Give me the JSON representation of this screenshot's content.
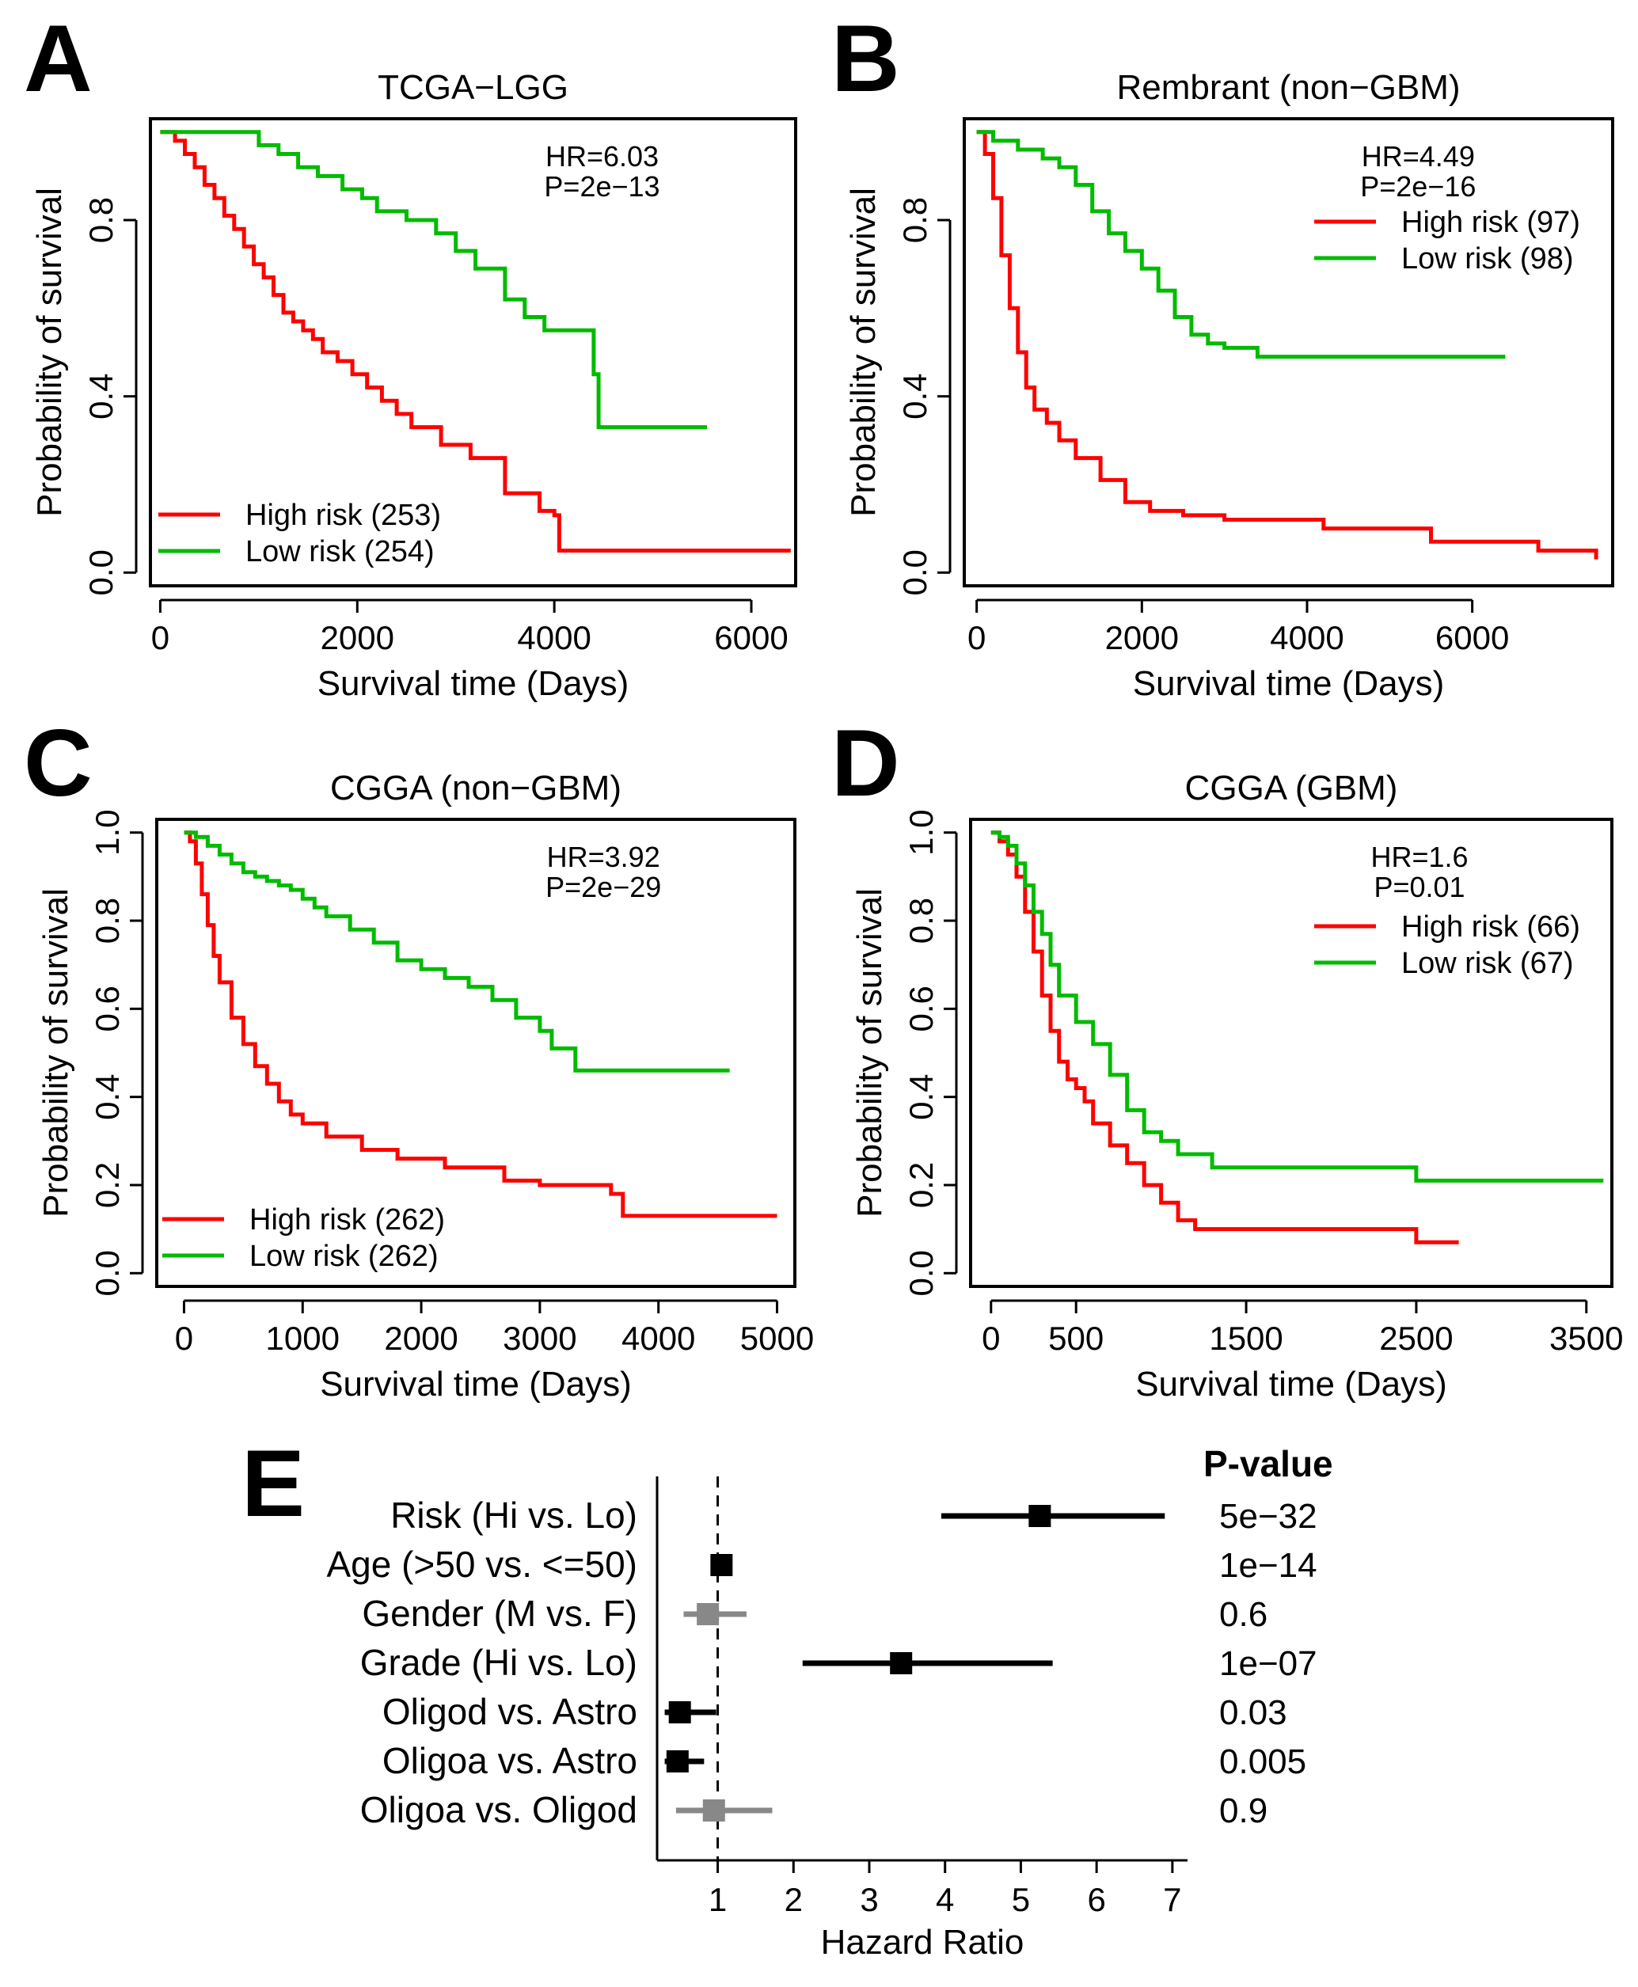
{
  "chart_data": [
    {
      "type": "line",
      "panel": "A",
      "title": "TCGA−LGG",
      "xlabel": "Survival time (Days)",
      "ylabel": "Probability of survival",
      "xlim": [
        -100,
        6450
      ],
      "ylim": [
        -0.03,
        1.03
      ],
      "xticks": [
        0,
        2000,
        4000,
        6000
      ],
      "xtick_labels": [
        "0",
        "2000",
        "4000",
        "6000"
      ],
      "yticks": [
        0,
        0.4,
        0.8
      ],
      "ytick_labels": [
        "0.0",
        "0.4",
        "0.8"
      ],
      "hr_text": "HR=6.03",
      "p_text": "P=2e−13",
      "legend_position": "bottom-left",
      "series": [
        {
          "name": "High risk (253)",
          "color": "#ff0000",
          "x": [
            0,
            150,
            250,
            350,
            450,
            550,
            650,
            750,
            850,
            950,
            1050,
            1150,
            1250,
            1350,
            1450,
            1550,
            1650,
            1800,
            1950,
            2100,
            2250,
            2400,
            2550,
            2850,
            3150,
            3500,
            3850,
            4000,
            4050,
            4400,
            5000,
            6400
          ],
          "y": [
            1.0,
            0.98,
            0.95,
            0.92,
            0.88,
            0.85,
            0.81,
            0.78,
            0.74,
            0.7,
            0.67,
            0.63,
            0.59,
            0.57,
            0.55,
            0.53,
            0.5,
            0.48,
            0.45,
            0.42,
            0.39,
            0.36,
            0.33,
            0.29,
            0.26,
            0.18,
            0.14,
            0.13,
            0.05,
            0.05,
            0.05,
            0.05
          ]
        },
        {
          "name": "Low risk (254)",
          "color": "#00bb00",
          "x": [
            0,
            500,
            800,
            1000,
            1200,
            1400,
            1600,
            1850,
            2050,
            2200,
            2500,
            2800,
            3000,
            3200,
            3500,
            3700,
            3900,
            4050,
            4400,
            4450,
            5000,
            5550
          ],
          "y": [
            1.0,
            1.0,
            1.0,
            0.97,
            0.95,
            0.92,
            0.9,
            0.87,
            0.85,
            0.82,
            0.8,
            0.77,
            0.73,
            0.69,
            0.62,
            0.58,
            0.55,
            0.55,
            0.45,
            0.33,
            0.33,
            0.33
          ]
        }
      ]
    },
    {
      "type": "line",
      "panel": "B",
      "title": "Rembrant (non−GBM)",
      "xlabel": "Survival time (Days)",
      "ylabel": "Probability of survival",
      "xlim": [
        -150,
        7700
      ],
      "ylim": [
        -0.03,
        1.03
      ],
      "xticks": [
        0,
        2000,
        4000,
        6000
      ],
      "xtick_labels": [
        "0",
        "2000",
        "4000",
        "6000"
      ],
      "yticks": [
        0,
        0.4,
        0.8
      ],
      "ytick_labels": [
        "0.0",
        "0.4",
        "0.8"
      ],
      "hr_text": "HR=4.49",
      "p_text": "P=2e−16",
      "legend_position": "top-right",
      "series": [
        {
          "name": "High risk (97)",
          "color": "#ff0000",
          "x": [
            0,
            100,
            200,
            300,
            400,
            500,
            600,
            700,
            850,
            1000,
            1200,
            1500,
            1800,
            2100,
            2500,
            3000,
            4200,
            5500,
            6800,
            7500
          ],
          "y": [
            1.0,
            0.95,
            0.85,
            0.72,
            0.6,
            0.5,
            0.42,
            0.37,
            0.34,
            0.3,
            0.26,
            0.21,
            0.16,
            0.14,
            0.13,
            0.12,
            0.1,
            0.07,
            0.05,
            0.03
          ]
        },
        {
          "name": "Low risk (98)",
          "color": "#00bb00",
          "x": [
            0,
            200,
            500,
            800,
            1000,
            1200,
            1400,
            1600,
            1800,
            2000,
            2200,
            2400,
            2600,
            2800,
            3000,
            3400,
            4200,
            5000,
            6400
          ],
          "y": [
            1.0,
            0.98,
            0.96,
            0.94,
            0.92,
            0.88,
            0.82,
            0.77,
            0.73,
            0.69,
            0.64,
            0.58,
            0.54,
            0.52,
            0.51,
            0.49,
            0.49,
            0.49,
            0.49
          ]
        }
      ]
    },
    {
      "type": "line",
      "panel": "C",
      "title": "CGGA (non−GBM)",
      "xlabel": "Survival time (Days)",
      "ylabel": "Probability of survival",
      "xlim": [
        -230,
        5150
      ],
      "ylim": [
        -0.03,
        1.03
      ],
      "xticks": [
        0,
        1000,
        2000,
        3000,
        4000,
        5000
      ],
      "xtick_labels": [
        "0",
        "1000",
        "2000",
        "3000",
        "4000",
        "5000"
      ],
      "yticks": [
        0,
        0.2,
        0.4,
        0.6,
        0.8,
        1.0
      ],
      "ytick_labels": [
        "0.0",
        "0.2",
        "0.4",
        "0.6",
        "0.8",
        "1.0"
      ],
      "hr_text": "HR=3.92",
      "p_text": "P=2e−29",
      "legend_position": "bottom-left",
      "series": [
        {
          "name": "High risk (262)",
          "color": "#ff0000",
          "x": [
            0,
            50,
            100,
            150,
            200,
            250,
            300,
            400,
            500,
            600,
            700,
            800,
            900,
            1000,
            1200,
            1500,
            1800,
            2200,
            2700,
            3000,
            3600,
            3700,
            4500,
            5000
          ],
          "y": [
            1.0,
            0.98,
            0.93,
            0.86,
            0.79,
            0.72,
            0.66,
            0.58,
            0.52,
            0.47,
            0.43,
            0.39,
            0.36,
            0.34,
            0.31,
            0.28,
            0.26,
            0.24,
            0.21,
            0.2,
            0.18,
            0.13,
            0.13,
            0.13
          ]
        },
        {
          "name": "Low risk (262)",
          "color": "#00bb00",
          "x": [
            0,
            100,
            200,
            300,
            400,
            500,
            600,
            700,
            800,
            900,
            1000,
            1100,
            1200,
            1400,
            1600,
            1800,
            2000,
            2200,
            2400,
            2600,
            2800,
            3000,
            3100,
            3300,
            3500,
            4000,
            4600
          ],
          "y": [
            1.0,
            0.99,
            0.97,
            0.95,
            0.93,
            0.91,
            0.9,
            0.89,
            0.88,
            0.87,
            0.85,
            0.83,
            0.81,
            0.78,
            0.75,
            0.71,
            0.69,
            0.67,
            0.65,
            0.62,
            0.58,
            0.55,
            0.51,
            0.46,
            0.46,
            0.46,
            0.46
          ]
        }
      ]
    },
    {
      "type": "line",
      "panel": "D",
      "title": "CGGA (GBM)",
      "xlabel": "Survival time (Days)",
      "ylabel": "Probability of survival",
      "xlim": [
        -120,
        3650
      ],
      "ylim": [
        -0.03,
        1.03
      ],
      "xticks": [
        0,
        500,
        1500,
        2500,
        3500
      ],
      "xtick_labels": [
        "0",
        "500",
        "1500",
        "2500",
        "3500"
      ],
      "yticks": [
        0,
        0.2,
        0.4,
        0.6,
        0.8,
        1.0
      ],
      "ytick_labels": [
        "0.0",
        "0.2",
        "0.4",
        "0.6",
        "0.8",
        "1.0"
      ],
      "hr_text": "HR=1.6",
      "p_text": "P=0.01",
      "legend_position": "top-right",
      "series": [
        {
          "name": "High risk (66)",
          "color": "#ff0000",
          "x": [
            0,
            50,
            100,
            150,
            200,
            250,
            300,
            350,
            400,
            450,
            500,
            550,
            600,
            700,
            800,
            900,
            1000,
            1100,
            1200,
            1500,
            2000,
            2500,
            2750
          ],
          "y": [
            1.0,
            0.98,
            0.95,
            0.9,
            0.82,
            0.73,
            0.63,
            0.55,
            0.48,
            0.44,
            0.42,
            0.39,
            0.34,
            0.29,
            0.25,
            0.2,
            0.16,
            0.12,
            0.1,
            0.1,
            0.1,
            0.07,
            0.07
          ]
        },
        {
          "name": "Low risk (67)",
          "color": "#00bb00",
          "x": [
            0,
            50,
            100,
            150,
            200,
            250,
            300,
            350,
            400,
            500,
            600,
            700,
            800,
            900,
            1000,
            1100,
            1300,
            1500,
            1900,
            2500,
            3600
          ],
          "y": [
            1.0,
            0.99,
            0.97,
            0.93,
            0.88,
            0.82,
            0.77,
            0.7,
            0.63,
            0.57,
            0.52,
            0.45,
            0.37,
            0.32,
            0.3,
            0.27,
            0.24,
            0.24,
            0.24,
            0.21,
            0.21
          ]
        }
      ]
    },
    {
      "type": "forest",
      "panel": "E",
      "xlabel": "Hazard Ratio",
      "xlim": [
        0.2,
        7.2
      ],
      "xticks": [
        1,
        2,
        3,
        4,
        5,
        6,
        7
      ],
      "xtick_labels": [
        "1",
        "2",
        "3",
        "4",
        "5",
        "6",
        "7"
      ],
      "reference_line": 1,
      "pvalue_header": "P-value",
      "rows": [
        {
          "label": "Risk (Hi vs. Lo)",
          "hr": 5.25,
          "lo": 3.95,
          "hi": 6.9,
          "p": "5e−32",
          "significant": true
        },
        {
          "label": "Age (>50 vs. <=50)",
          "hr": 1.05,
          "lo": 0.98,
          "hi": 1.12,
          "p": "1e−14",
          "significant": true
        },
        {
          "label": "Gender (M vs. F)",
          "hr": 0.87,
          "lo": 0.55,
          "hi": 1.38,
          "p": "0.6",
          "significant": false
        },
        {
          "label": "Grade (Hi vs. Lo)",
          "hr": 3.42,
          "lo": 2.12,
          "hi": 5.42,
          "p": "1e−07",
          "significant": true
        },
        {
          "label": "Oligod vs. Astro",
          "hr": 0.5,
          "lo": 0.3,
          "hi": 0.98,
          "p": "0.03",
          "significant": true
        },
        {
          "label": "Oligoa vs. Astro",
          "hr": 0.47,
          "lo": 0.3,
          "hi": 0.82,
          "p": "0.005",
          "significant": true
        },
        {
          "label": "Oligoa vs. Oligod",
          "hr": 0.95,
          "lo": 0.45,
          "hi": 1.72,
          "p": "0.9",
          "significant": false
        }
      ]
    }
  ]
}
